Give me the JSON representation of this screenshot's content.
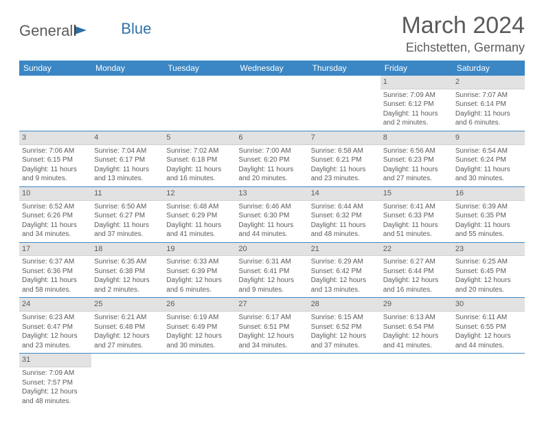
{
  "logo": {
    "text1": "General",
    "text2": "Blue"
  },
  "title": "March 2024",
  "location": "Eichstetten, Germany",
  "colors": {
    "header_bg": "#3b86c4",
    "header_fg": "#ffffff",
    "daynum_bg": "#e2e2e2",
    "row_divider": "#3b86c4",
    "text": "#5a5a5a",
    "page_bg": "#ffffff"
  },
  "fonts": {
    "title_pt": 34,
    "location_pt": 18,
    "dayheader_pt": 12,
    "cell_pt": 10
  },
  "day_headers": [
    "Sunday",
    "Monday",
    "Tuesday",
    "Wednesday",
    "Thursday",
    "Friday",
    "Saturday"
  ],
  "weeks": [
    [
      {
        "n": "",
        "lines": []
      },
      {
        "n": "",
        "lines": []
      },
      {
        "n": "",
        "lines": []
      },
      {
        "n": "",
        "lines": []
      },
      {
        "n": "",
        "lines": []
      },
      {
        "n": "1",
        "lines": [
          "Sunrise: 7:09 AM",
          "Sunset: 6:12 PM",
          "Daylight: 11 hours and 2 minutes."
        ]
      },
      {
        "n": "2",
        "lines": [
          "Sunrise: 7:07 AM",
          "Sunset: 6:14 PM",
          "Daylight: 11 hours and 6 minutes."
        ]
      }
    ],
    [
      {
        "n": "3",
        "lines": [
          "Sunrise: 7:06 AM",
          "Sunset: 6:15 PM",
          "Daylight: 11 hours and 9 minutes."
        ]
      },
      {
        "n": "4",
        "lines": [
          "Sunrise: 7:04 AM",
          "Sunset: 6:17 PM",
          "Daylight: 11 hours and 13 minutes."
        ]
      },
      {
        "n": "5",
        "lines": [
          "Sunrise: 7:02 AM",
          "Sunset: 6:18 PM",
          "Daylight: 11 hours and 16 minutes."
        ]
      },
      {
        "n": "6",
        "lines": [
          "Sunrise: 7:00 AM",
          "Sunset: 6:20 PM",
          "Daylight: 11 hours and 20 minutes."
        ]
      },
      {
        "n": "7",
        "lines": [
          "Sunrise: 6:58 AM",
          "Sunset: 6:21 PM",
          "Daylight: 11 hours and 23 minutes."
        ]
      },
      {
        "n": "8",
        "lines": [
          "Sunrise: 6:56 AM",
          "Sunset: 6:23 PM",
          "Daylight: 11 hours and 27 minutes."
        ]
      },
      {
        "n": "9",
        "lines": [
          "Sunrise: 6:54 AM",
          "Sunset: 6:24 PM",
          "Daylight: 11 hours and 30 minutes."
        ]
      }
    ],
    [
      {
        "n": "10",
        "lines": [
          "Sunrise: 6:52 AM",
          "Sunset: 6:26 PM",
          "Daylight: 11 hours and 34 minutes."
        ]
      },
      {
        "n": "11",
        "lines": [
          "Sunrise: 6:50 AM",
          "Sunset: 6:27 PM",
          "Daylight: 11 hours and 37 minutes."
        ]
      },
      {
        "n": "12",
        "lines": [
          "Sunrise: 6:48 AM",
          "Sunset: 6:29 PM",
          "Daylight: 11 hours and 41 minutes."
        ]
      },
      {
        "n": "13",
        "lines": [
          "Sunrise: 6:46 AM",
          "Sunset: 6:30 PM",
          "Daylight: 11 hours and 44 minutes."
        ]
      },
      {
        "n": "14",
        "lines": [
          "Sunrise: 6:44 AM",
          "Sunset: 6:32 PM",
          "Daylight: 11 hours and 48 minutes."
        ]
      },
      {
        "n": "15",
        "lines": [
          "Sunrise: 6:41 AM",
          "Sunset: 6:33 PM",
          "Daylight: 11 hours and 51 minutes."
        ]
      },
      {
        "n": "16",
        "lines": [
          "Sunrise: 6:39 AM",
          "Sunset: 6:35 PM",
          "Daylight: 11 hours and 55 minutes."
        ]
      }
    ],
    [
      {
        "n": "17",
        "lines": [
          "Sunrise: 6:37 AM",
          "Sunset: 6:36 PM",
          "Daylight: 11 hours and 58 minutes."
        ]
      },
      {
        "n": "18",
        "lines": [
          "Sunrise: 6:35 AM",
          "Sunset: 6:38 PM",
          "Daylight: 12 hours and 2 minutes."
        ]
      },
      {
        "n": "19",
        "lines": [
          "Sunrise: 6:33 AM",
          "Sunset: 6:39 PM",
          "Daylight: 12 hours and 6 minutes."
        ]
      },
      {
        "n": "20",
        "lines": [
          "Sunrise: 6:31 AM",
          "Sunset: 6:41 PM",
          "Daylight: 12 hours and 9 minutes."
        ]
      },
      {
        "n": "21",
        "lines": [
          "Sunrise: 6:29 AM",
          "Sunset: 6:42 PM",
          "Daylight: 12 hours and 13 minutes."
        ]
      },
      {
        "n": "22",
        "lines": [
          "Sunrise: 6:27 AM",
          "Sunset: 6:44 PM",
          "Daylight: 12 hours and 16 minutes."
        ]
      },
      {
        "n": "23",
        "lines": [
          "Sunrise: 6:25 AM",
          "Sunset: 6:45 PM",
          "Daylight: 12 hours and 20 minutes."
        ]
      }
    ],
    [
      {
        "n": "24",
        "lines": [
          "Sunrise: 6:23 AM",
          "Sunset: 6:47 PM",
          "Daylight: 12 hours and 23 minutes."
        ]
      },
      {
        "n": "25",
        "lines": [
          "Sunrise: 6:21 AM",
          "Sunset: 6:48 PM",
          "Daylight: 12 hours and 27 minutes."
        ]
      },
      {
        "n": "26",
        "lines": [
          "Sunrise: 6:19 AM",
          "Sunset: 6:49 PM",
          "Daylight: 12 hours and 30 minutes."
        ]
      },
      {
        "n": "27",
        "lines": [
          "Sunrise: 6:17 AM",
          "Sunset: 6:51 PM",
          "Daylight: 12 hours and 34 minutes."
        ]
      },
      {
        "n": "28",
        "lines": [
          "Sunrise: 6:15 AM",
          "Sunset: 6:52 PM",
          "Daylight: 12 hours and 37 minutes."
        ]
      },
      {
        "n": "29",
        "lines": [
          "Sunrise: 6:13 AM",
          "Sunset: 6:54 PM",
          "Daylight: 12 hours and 41 minutes."
        ]
      },
      {
        "n": "30",
        "lines": [
          "Sunrise: 6:11 AM",
          "Sunset: 6:55 PM",
          "Daylight: 12 hours and 44 minutes."
        ]
      }
    ],
    [
      {
        "n": "31",
        "lines": [
          "Sunrise: 7:09 AM",
          "Sunset: 7:57 PM",
          "Daylight: 12 hours and 48 minutes."
        ]
      },
      {
        "n": "",
        "lines": []
      },
      {
        "n": "",
        "lines": []
      },
      {
        "n": "",
        "lines": []
      },
      {
        "n": "",
        "lines": []
      },
      {
        "n": "",
        "lines": []
      },
      {
        "n": "",
        "lines": []
      }
    ]
  ]
}
